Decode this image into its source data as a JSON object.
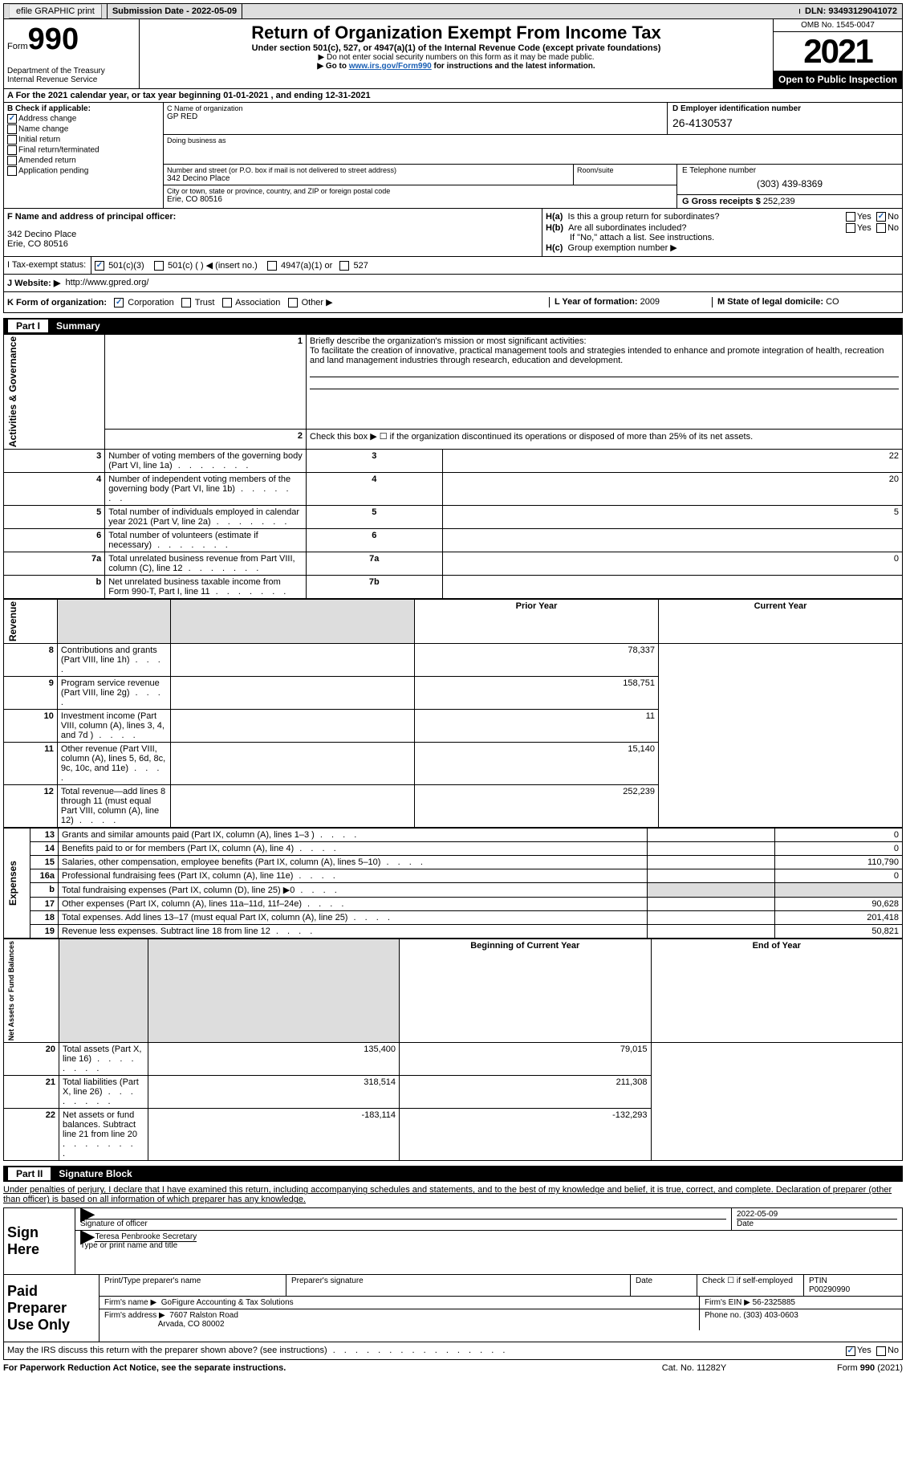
{
  "topbar": {
    "efile": "efile GRAPHIC print",
    "submission": "Submission Date - 2022-05-09",
    "dln": "DLN: 93493129041072"
  },
  "header": {
    "form_word": "Form",
    "form_num": "990",
    "dept": "Department of the Treasury\nInternal Revenue Service",
    "title": "Return of Organization Exempt From Income Tax",
    "sub": "Under section 501(c), 527, or 4947(a)(1) of the Internal Revenue Code (except private foundations)",
    "note1": "▶ Do not enter social security numbers on this form as it may be made public.",
    "note2_pre": "▶ Go to ",
    "note2_link": "www.irs.gov/Form990",
    "note2_post": " for instructions and the latest information.",
    "omb": "OMB No. 1545-0047",
    "year": "2021",
    "inspection": "Open to Public Inspection"
  },
  "period": {
    "text": "A For the 2021 calendar year, or tax year beginning 01-01-2021    , and ending 12-31-2021"
  },
  "secB": {
    "label": "B Check if applicable:",
    "opts": [
      {
        "label": "Address change",
        "checked": true
      },
      {
        "label": "Name change",
        "checked": false
      },
      {
        "label": "Initial return",
        "checked": false
      },
      {
        "label": "Final return/terminated",
        "checked": false
      },
      {
        "label": "Amended return",
        "checked": false
      },
      {
        "label": "Application pending",
        "checked": false
      }
    ]
  },
  "secC": {
    "name_label": "C Name of organization",
    "name": "GP RED",
    "dba_label": "Doing business as",
    "dba": "",
    "street_label": "Number and street (or P.O. box if mail is not delivered to street address)",
    "street": "342 Decino Place",
    "room_label": "Room/suite",
    "city_label": "City or town, state or province, country, and ZIP or foreign postal code",
    "city": "Erie, CO  80516"
  },
  "secD": {
    "label": "D Employer identification number",
    "value": "26-4130537"
  },
  "secE": {
    "label": "E Telephone number",
    "value": "(303) 439-8369"
  },
  "secG": {
    "label": "G Gross receipts $",
    "value": "252,239"
  },
  "secF": {
    "label": "F Name and address of principal officer:",
    "addr1": "342 Decino Place",
    "addr2": "Erie, CO  80516"
  },
  "secH": {
    "a_pre": "H(a)",
    "a": "Is this a group return for subordinates?",
    "a_yes": "Yes",
    "a_no": "No",
    "a_checked_no": true,
    "b_pre": "H(b)",
    "b": "Are all subordinates included?",
    "b_note": "If \"No,\" attach a list. See instructions.",
    "c_pre": "H(c)",
    "c": "Group exemption number ▶"
  },
  "secI": {
    "label": "I   Tax-exempt status:",
    "o1": "501(c)(3)",
    "o2": "501(c) (   ) ◀ (insert no.)",
    "o3": "4947(a)(1) or",
    "o4": "527"
  },
  "secJ": {
    "label": "J   Website: ▶",
    "value": "http://www.gpred.org/"
  },
  "secK": {
    "label": "K Form of organization:",
    "opts": [
      "Corporation",
      "Trust",
      "Association",
      "Other ▶"
    ],
    "L_label": "L Year of formation:",
    "L_val": "2009",
    "M_label": "M State of legal domicile:",
    "M_val": "CO"
  },
  "part1": {
    "hdr": "Summary",
    "rows": [
      {
        "n": "1",
        "desc": "Briefly describe the organization's mission or most significant activities:",
        "mission": "To facilitate the creation of innovative, practical management tools and strategies intended to enhance and promote integration of health, recreation and land management industries through research, education and development."
      },
      {
        "n": "2",
        "desc": "Check this box ▶ ☐ if the organization discontinued its operations or disposed of more than 25% of its net assets."
      }
    ],
    "ag_rows": [
      {
        "n": "3",
        "desc": "Number of voting members of the governing body (Part VI, line 1a)",
        "box": "3",
        "val": "22"
      },
      {
        "n": "4",
        "desc": "Number of independent voting members of the governing body (Part VI, line 1b)",
        "box": "4",
        "val": "20"
      },
      {
        "n": "5",
        "desc": "Total number of individuals employed in calendar year 2021 (Part V, line 2a)",
        "box": "5",
        "val": "5"
      },
      {
        "n": "6",
        "desc": "Total number of volunteers (estimate if necessary)",
        "box": "6",
        "val": ""
      },
      {
        "n": "7a",
        "desc": "Total unrelated business revenue from Part VIII, column (C), line 12",
        "box": "7a",
        "val": "0"
      },
      {
        "n": "b",
        "desc": "Net unrelated business taxable income from Form 990-T, Part I, line 11",
        "box": "7b",
        "val": ""
      }
    ],
    "col_hdr": {
      "prior": "Prior Year",
      "curr": "Current Year"
    },
    "rev_rows": [
      {
        "n": "8",
        "desc": "Contributions and grants (Part VIII, line 1h)",
        "prior": "",
        "curr": "78,337"
      },
      {
        "n": "9",
        "desc": "Program service revenue (Part VIII, line 2g)",
        "prior": "",
        "curr": "158,751"
      },
      {
        "n": "10",
        "desc": "Investment income (Part VIII, column (A), lines 3, 4, and 7d )",
        "prior": "",
        "curr": "11"
      },
      {
        "n": "11",
        "desc": "Other revenue (Part VIII, column (A), lines 5, 6d, 8c, 9c, 10c, and 11e)",
        "prior": "",
        "curr": "15,140"
      },
      {
        "n": "12",
        "desc": "Total revenue—add lines 8 through 11 (must equal Part VIII, column (A), line 12)",
        "prior": "",
        "curr": "252,239"
      }
    ],
    "exp_rows": [
      {
        "n": "13",
        "desc": "Grants and similar amounts paid (Part IX, column (A), lines 1–3 )",
        "prior": "",
        "curr": "0"
      },
      {
        "n": "14",
        "desc": "Benefits paid to or for members (Part IX, column (A), line 4)",
        "prior": "",
        "curr": "0"
      },
      {
        "n": "15",
        "desc": "Salaries, other compensation, employee benefits (Part IX, column (A), lines 5–10)",
        "prior": "",
        "curr": "110,790"
      },
      {
        "n": "16a",
        "desc": "Professional fundraising fees (Part IX, column (A), line 11e)",
        "prior": "",
        "curr": "0"
      },
      {
        "n": "b",
        "desc": "Total fundraising expenses (Part IX, column (D), line 25) ▶0",
        "prior": "SHADE",
        "curr": "SHADE"
      },
      {
        "n": "17",
        "desc": "Other expenses (Part IX, column (A), lines 11a–11d, 11f–24e)",
        "prior": "",
        "curr": "90,628"
      },
      {
        "n": "18",
        "desc": "Total expenses. Add lines 13–17 (must equal Part IX, column (A), line 25)",
        "prior": "",
        "curr": "201,418"
      },
      {
        "n": "19",
        "desc": "Revenue less expenses. Subtract line 18 from line 12",
        "prior": "",
        "curr": "50,821"
      }
    ],
    "na_hdr": {
      "prior": "Beginning of Current Year",
      "curr": "End of Year"
    },
    "na_rows": [
      {
        "n": "20",
        "desc": "Total assets (Part X, line 16)",
        "prior": "135,400",
        "curr": "79,015"
      },
      {
        "n": "21",
        "desc": "Total liabilities (Part X, line 26)",
        "prior": "318,514",
        "curr": "211,308"
      },
      {
        "n": "22",
        "desc": "Net assets or fund balances. Subtract line 21 from line 20",
        "prior": "-183,114",
        "curr": "-132,293"
      }
    ],
    "side_labels": {
      "ag": "Activities & Governance",
      "rev": "Revenue",
      "exp": "Expenses",
      "na": "Net Assets or Fund Balances"
    }
  },
  "part2": {
    "hdr": "Signature Block",
    "decl": "Under penalties of perjury, I declare that I have examined this return, including accompanying schedules and statements, and to the best of my knowledge and belief, it is true, correct, and complete. Declaration of preparer (other than officer) is based on all information of which preparer has any knowledge.",
    "sign_here": "Sign Here",
    "sig_officer": "Signature of officer",
    "sig_date": "2022-05-09",
    "date_lbl": "Date",
    "officer_name": "Teresa Penbrooke  Secretary",
    "officer_lbl": "Type or print name and title",
    "paid": "Paid Preparer Use Only",
    "prep_print": "Print/Type preparer's name",
    "prep_sig": "Preparer's signature",
    "prep_date": "Date",
    "prep_check": "Check ☐ if self-employed",
    "ptin_lbl": "PTIN",
    "ptin": "P00290990",
    "firm_name_lbl": "Firm's name    ▶",
    "firm_name": "GoFigure Accounting & Tax Solutions",
    "firm_ein_lbl": "Firm's EIN ▶",
    "firm_ein": "56-2325885",
    "firm_addr_lbl": "Firm's address ▶",
    "firm_addr1": "7607 Ralston Road",
    "firm_addr2": "Arvada, CO  80002",
    "phone_lbl": "Phone no.",
    "phone": "(303) 403-0603"
  },
  "footer": {
    "discuss": "May the IRS discuss this return with the preparer shown above? (see instructions)",
    "yes": "Yes",
    "no": "No",
    "paperwork": "For Paperwork Reduction Act Notice, see the separate instructions.",
    "cat": "Cat. No. 11282Y",
    "form": "Form 990 (2021)"
  }
}
